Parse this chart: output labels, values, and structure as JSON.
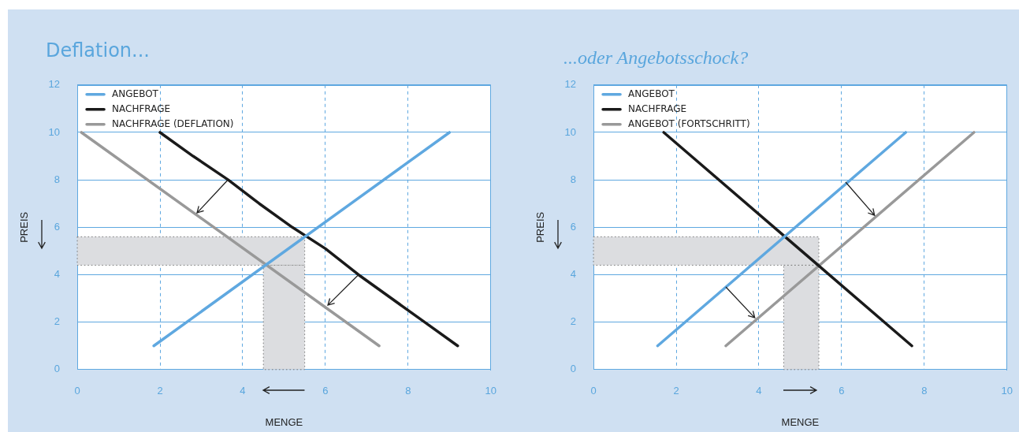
{
  "chart_data": [
    {
      "type": "line",
      "title": "Deflation...",
      "xlabel": "MENGE",
      "ylabel": "PREIS",
      "xlim": [
        0,
        10
      ],
      "xticks": [
        0,
        2,
        4,
        6,
        8,
        10
      ],
      "ylim": [
        0,
        12
      ],
      "yticks": [
        0,
        2,
        4,
        6,
        8,
        10,
        12
      ],
      "grid": true,
      "legend": "top left",
      "marker": "none",
      "series": [
        {
          "name": "ANGEBOT",
          "color": "#5fa8e0",
          "x": [
            1.85,
            9
          ],
          "values": [
            1,
            10
          ]
        },
        {
          "name": "NACHFRAGE",
          "color": "#1a1a1a",
          "x": [
            2,
            2.8,
            3.65,
            4.4,
            5.2,
            6,
            6.8,
            8.4,
            9.2
          ],
          "values": [
            10,
            9,
            8,
            7,
            6,
            5.1,
            4,
            2,
            1
          ]
        },
        {
          "name": "NACHFRAGE (DEFLATION)",
          "color": "#999999",
          "x": [
            0.1,
            7.3
          ],
          "values": [
            10,
            1
          ]
        }
      ],
      "bands": [
        {
          "axis": "y",
          "from": 4.4,
          "to": 5.6,
          "color": "#dcdde0"
        },
        {
          "axis": "x",
          "from": 4.5,
          "to": 5.5,
          "color": "#dcdde0"
        }
      ]
    },
    {
      "type": "line",
      "title": "...oder Angebotsschock?",
      "xlabel": "MENGE",
      "ylabel": "PREIS",
      "xlim": [
        0,
        10
      ],
      "xticks": [
        0,
        2,
        4,
        6,
        8,
        10
      ],
      "ylim": [
        0,
        12
      ],
      "yticks": [
        0,
        2,
        4,
        6,
        8,
        10,
        12
      ],
      "grid": true,
      "legend": "top left",
      "marker": "none",
      "series": [
        {
          "name": "ANGEBOT",
          "color": "#5fa8e0",
          "x": [
            1.55,
            7.55
          ],
          "values": [
            1,
            10
          ]
        },
        {
          "name": "NACHFRAGE",
          "color": "#1a1a1a",
          "x": [
            1.7,
            7.7
          ],
          "values": [
            10,
            1
          ]
        },
        {
          "name": "ANGEBOT (FORTSCHRITT)",
          "color": "#999999",
          "x": [
            3.2,
            9.2
          ],
          "values": [
            1,
            10
          ]
        }
      ],
      "bands": [
        {
          "axis": "y",
          "from": 4.4,
          "to": 5.6,
          "color": "#dcdde0"
        },
        {
          "axis": "x",
          "from": 4.6,
          "to": 5.45,
          "color": "#dcdde0"
        }
      ]
    }
  ]
}
